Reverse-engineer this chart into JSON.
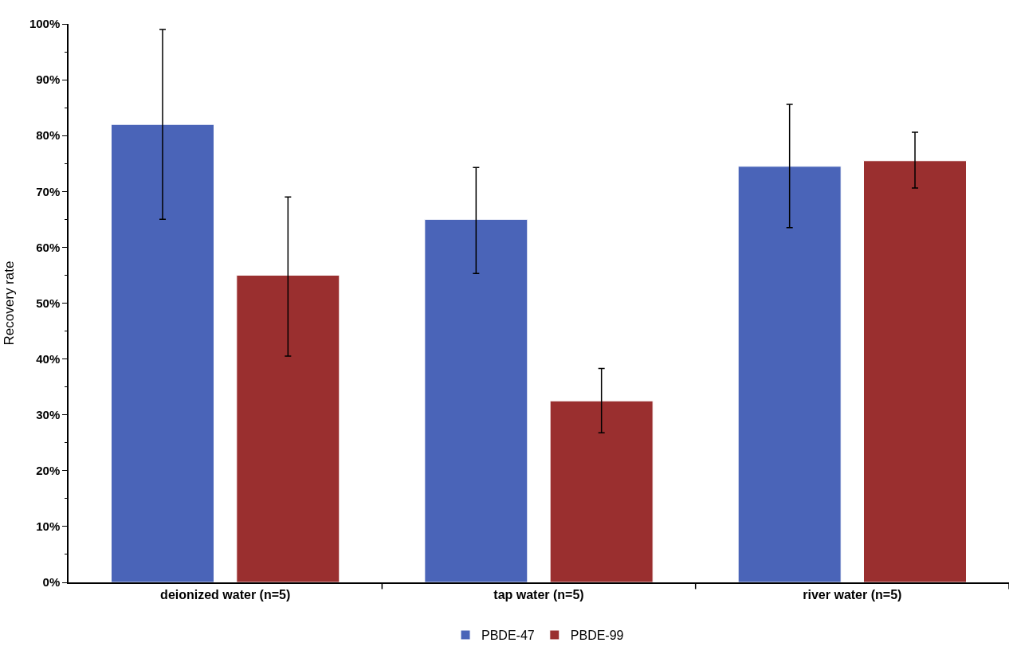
{
  "chart_data": {
    "type": "bar",
    "ylabel": "Recovery rate",
    "categories": [
      "deionized water (n=5)",
      "tap water (n=5)",
      "river water (n=5)"
    ],
    "series": [
      {
        "name": "PBDE-47",
        "color": "#4a64b8",
        "values": [
          82,
          65,
          74.5
        ],
        "errors": [
          [
            65,
            99
          ],
          [
            55.3,
            74.3
          ],
          [
            63.5,
            85.6
          ]
        ]
      },
      {
        "name": "PBDE-99",
        "color": "#9a2f2f",
        "values": [
          55,
          32.5,
          75.5
        ],
        "errors": [
          [
            40.5,
            69
          ],
          [
            26.8,
            38.3
          ],
          [
            70.6,
            80.6
          ]
        ]
      }
    ],
    "ylim": [
      0,
      100
    ],
    "yticks": [
      {
        "value": 0,
        "label": "0%"
      },
      {
        "value": 10,
        "label": "10%"
      },
      {
        "value": 20,
        "label": "20%"
      },
      {
        "value": 30,
        "label": "30%"
      },
      {
        "value": 40,
        "label": "40%"
      },
      {
        "value": 50,
        "label": "50%"
      },
      {
        "value": 60,
        "label": "60%"
      },
      {
        "value": 70,
        "label": "70%"
      },
      {
        "value": 80,
        "label": "80%"
      },
      {
        "value": 90,
        "label": "90%"
      },
      {
        "value": 100,
        "label": "100%"
      }
    ],
    "legend": "bottom"
  }
}
